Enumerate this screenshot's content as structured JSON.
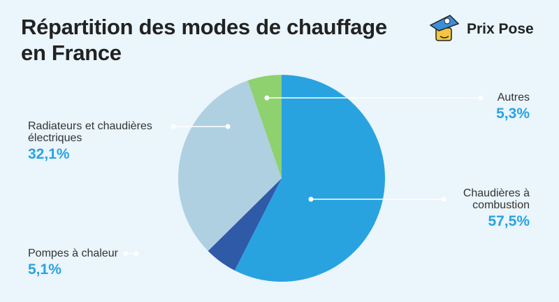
{
  "chart_data": {
    "type": "pie",
    "title": "Répartition des modes de chauffage en France",
    "brand": "Prix Pose",
    "categories": [
      "Chaudières à combustion",
      "Pompes à chaleur",
      "Radiateurs et chaudières électriques",
      "Autres"
    ],
    "values": [
      57.5,
      5.1,
      32.1,
      5.3
    ],
    "value_labels": [
      "57,5%",
      "5,1%",
      "32,1%",
      "5,3%"
    ],
    "colors": [
      "#29a3e0",
      "#2f5aa8",
      "#afd0e0",
      "#8fd16e"
    ]
  }
}
